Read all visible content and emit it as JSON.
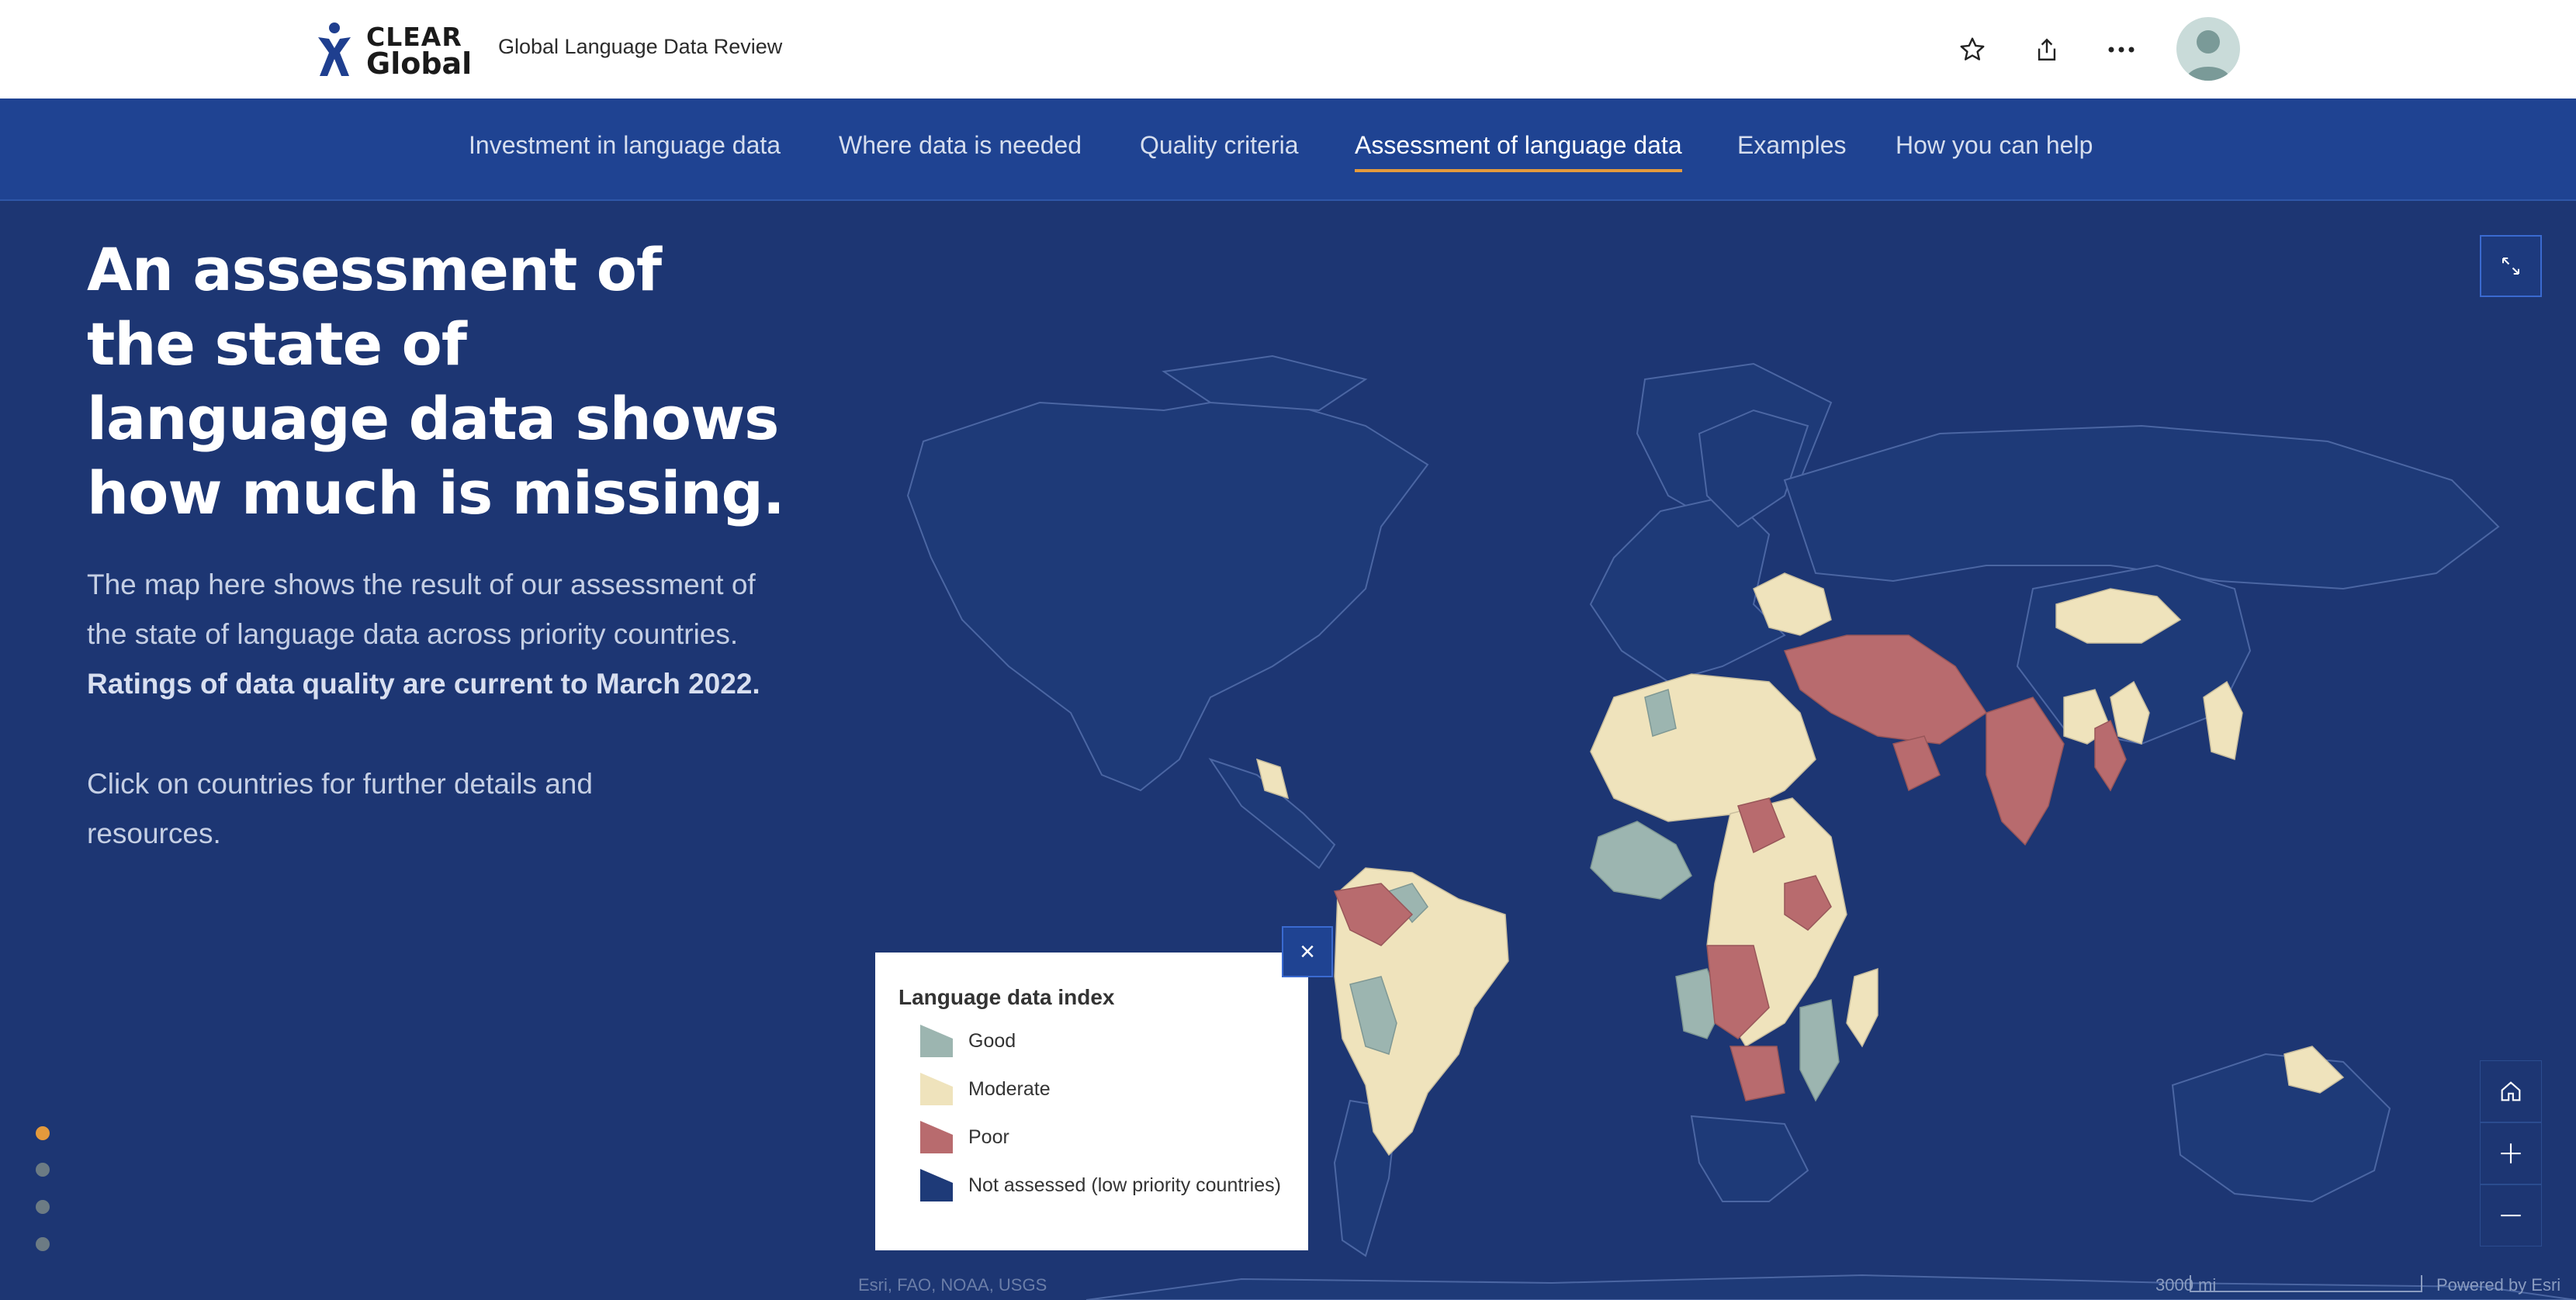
{
  "header": {
    "logo_line1": "CLEAR",
    "logo_line2": "Global",
    "site_title": "Global Language Data Review"
  },
  "nav": {
    "items": [
      {
        "label": "Investment in language data"
      },
      {
        "label": "Where data is needed"
      },
      {
        "label": "Quality criteria"
      },
      {
        "label": "Assessment of language data"
      },
      {
        "label": "Examples"
      },
      {
        "label": "How you can help"
      }
    ],
    "active_index": 3
  },
  "content": {
    "headline": "An assessment of the state of language data shows how much is missing.",
    "para1_normal": "The map here shows the result of our assessment of the state of language data across priority countries. ",
    "para1_bold": "Ratings of data quality are current to March 2022.",
    "para2": "Click on countries for further details and resources."
  },
  "legend": {
    "title": "Language data index",
    "items": [
      {
        "label": "Good",
        "color": "#9cb5b0"
      },
      {
        "label": "Moderate",
        "color": "#efe3bc"
      },
      {
        "label": "Poor",
        "color": "#b86b6e"
      },
      {
        "label": "Not assessed (low priority countries)",
        "color": "#1e3a78"
      }
    ],
    "close_label": "×"
  },
  "map": {
    "attribution": "Esri, FAO, NOAA, USGS",
    "scale_label": "3000 mi",
    "powered_by": "Powered by Esri",
    "colors": {
      "ocean": "#1d3673",
      "land_unassessed": "#1e3a78",
      "coastline": "#4b66a3",
      "good": "#9cb5b0",
      "moderate": "#efe3bc",
      "poor": "#b86b6e"
    }
  },
  "pager": {
    "count": 4,
    "active_index": 0
  },
  "icons": {
    "star": "star-icon",
    "share": "share-icon",
    "more": "more-icon",
    "expand": "expand-icon",
    "home": "home-icon",
    "zoom_in": "plus-icon",
    "zoom_out": "minus-icon"
  }
}
